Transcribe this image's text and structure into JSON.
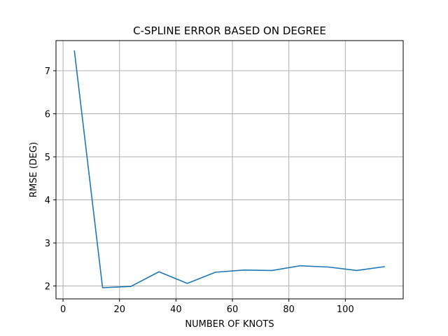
{
  "chart_data": {
    "type": "line",
    "title": "C-SPLINE ERROR BASED ON DEGREE",
    "xlabel": "NUMBER OF KNOTS",
    "ylabel": "RMSE (DEG)",
    "xlim": [
      -2.5,
      120.5
    ],
    "ylim": [
      1.7,
      7.7
    ],
    "xticks": [
      0,
      20,
      40,
      60,
      80,
      100
    ],
    "yticks": [
      2,
      3,
      4,
      5,
      6,
      7
    ],
    "grid": true,
    "series": [
      {
        "color": "#1f77b4",
        "x": [
          4,
          14,
          24,
          34,
          44,
          54,
          64,
          74,
          84,
          94,
          104,
          114
        ],
        "y": [
          7.47,
          1.96,
          1.99,
          2.33,
          2.06,
          2.32,
          2.37,
          2.36,
          2.47,
          2.44,
          2.36,
          2.45
        ]
      }
    ]
  }
}
